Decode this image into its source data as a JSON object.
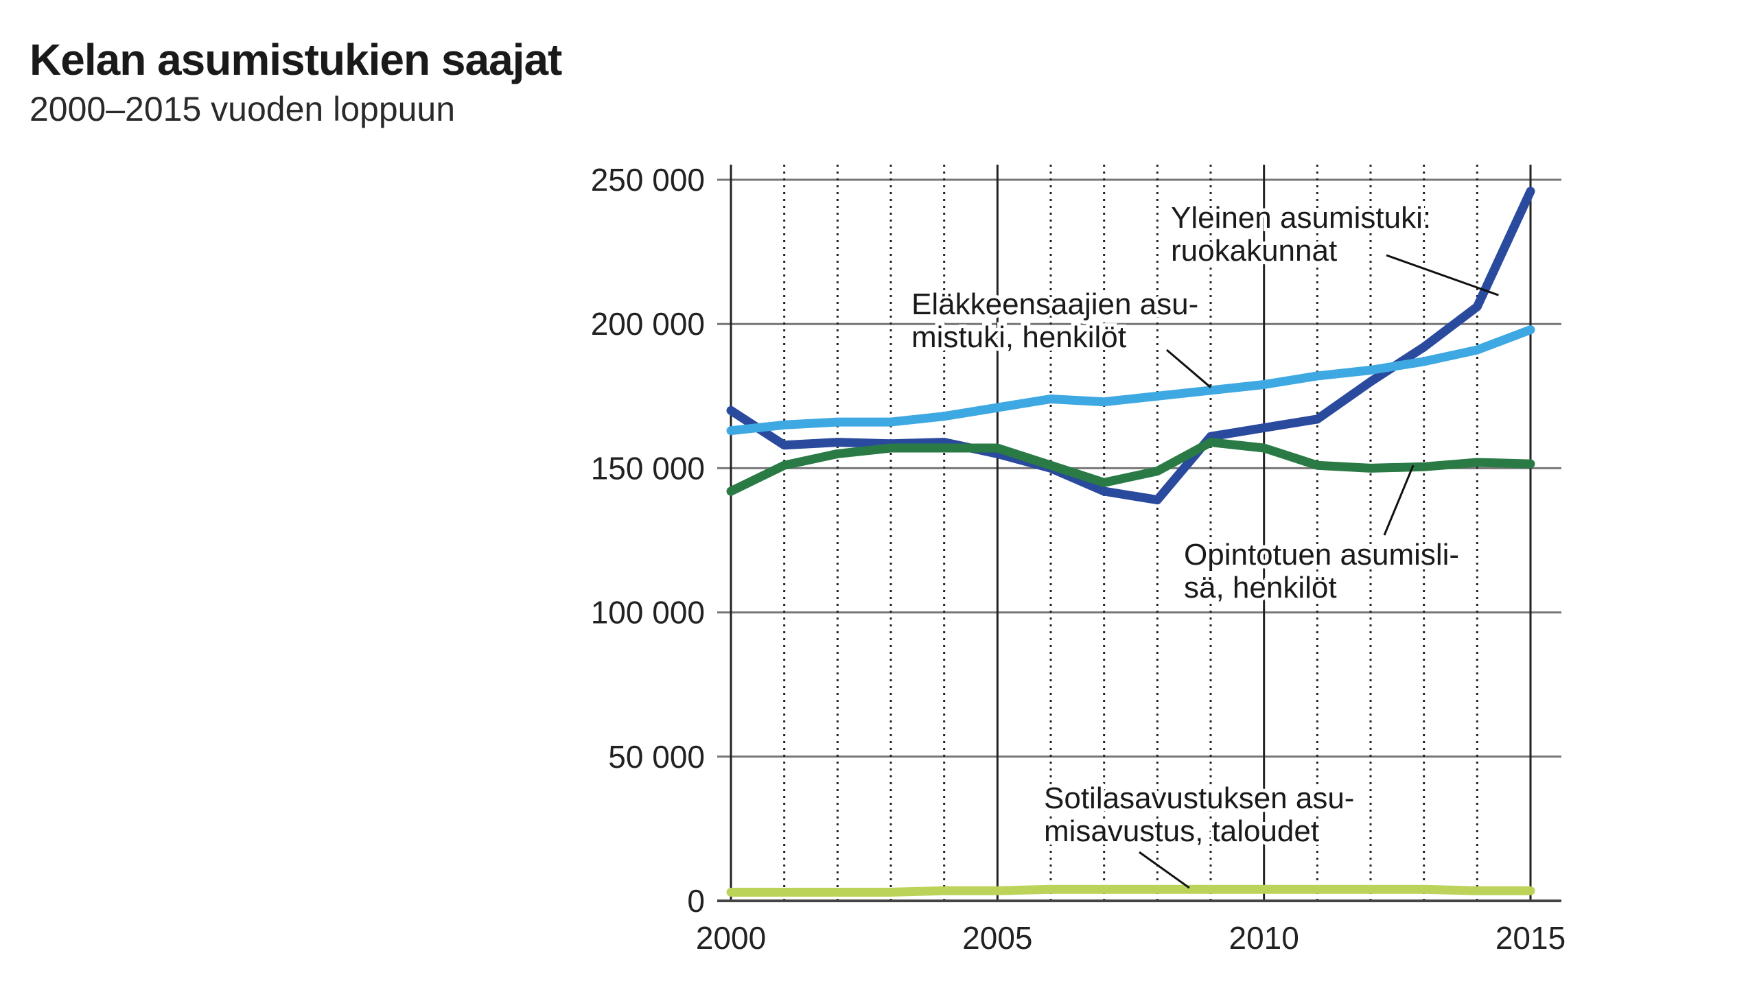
{
  "header": {
    "title": "Kelan asumistukien saajat",
    "subtitle": "2000–2015 vuoden loppuun"
  },
  "chart_data": {
    "type": "line",
    "title": "Kelan asumistukien saajat",
    "subtitle": "2000–2015 vuoden loppuun",
    "xlabel": "",
    "ylabel": "",
    "x": [
      2000,
      2001,
      2002,
      2003,
      2004,
      2005,
      2006,
      2007,
      2008,
      2009,
      2010,
      2011,
      2012,
      2013,
      2014,
      2015
    ],
    "xlim": [
      2000,
      2015
    ],
    "ylim": [
      0,
      250000
    ],
    "x_ticks": [
      {
        "value": 2000,
        "label": "2000"
      },
      {
        "value": 2005,
        "label": "2005"
      },
      {
        "value": 2010,
        "label": "2010"
      },
      {
        "value": 2015,
        "label": "2015"
      }
    ],
    "y_ticks": [
      {
        "value": 0,
        "label": "0"
      },
      {
        "value": 50000,
        "label": "50 000"
      },
      {
        "value": 100000,
        "label": "100 000"
      },
      {
        "value": 150000,
        "label": "150 000"
      },
      {
        "value": 200000,
        "label": "200 000"
      },
      {
        "value": 250000,
        "label": "250 000"
      }
    ],
    "grid": {
      "horizontal": true,
      "vertical_years": true
    },
    "legend": "direct-labels",
    "series": [
      {
        "name": "Yleinen asumistuki: ruokakunnat",
        "color": "#2a4a9e",
        "values": [
          170000,
          158000,
          159000,
          158500,
          159000,
          155000,
          150000,
          142000,
          139000,
          161000,
          164000,
          167000,
          180000,
          192000,
          206000,
          246000
        ]
      },
      {
        "name": "Eläkkeensaajien asumistuki, henkilöt",
        "color": "#3ea8e2",
        "values": [
          163000,
          165000,
          166000,
          166000,
          168000,
          171000,
          174000,
          173000,
          175000,
          177000,
          179000,
          182000,
          184000,
          187000,
          191000,
          198000
        ]
      },
      {
        "name": "Opintotuen asumislisä, henkilöt",
        "color": "#2a7a45",
        "values": [
          142000,
          151000,
          155000,
          157000,
          157000,
          157000,
          151000,
          145000,
          149000,
          159000,
          157000,
          151000,
          150000,
          150500,
          152000,
          151500
        ]
      },
      {
        "name": "Sotilasavustuksen asumisavustus, taloudet",
        "color": "#bcd35a",
        "values": [
          3000,
          3000,
          3000,
          3000,
          3500,
          3500,
          4000,
          4000,
          4000,
          4000,
          4000,
          4000,
          4000,
          4000,
          3500,
          3500
        ]
      }
    ],
    "annotations": [
      {
        "lines": [
          "Yleinen asumistuki:",
          "ruokakunnat"
        ],
        "pointer": [
          2014.4,
          210000
        ]
      },
      {
        "lines": [
          "Eläkkeensaajien asu-",
          "mistuki, henkilöt"
        ],
        "pointer": [
          2009,
          178000
        ]
      },
      {
        "lines": [
          "Opintotuen asumisli-",
          "sä, henkilöt"
        ],
        "pointer": [
          2012.8,
          151000
        ]
      },
      {
        "lines": [
          "Sotilasavustuksen asu-",
          "misavustus, taloudet"
        ],
        "pointer": [
          2008.6,
          4500
        ]
      }
    ]
  }
}
